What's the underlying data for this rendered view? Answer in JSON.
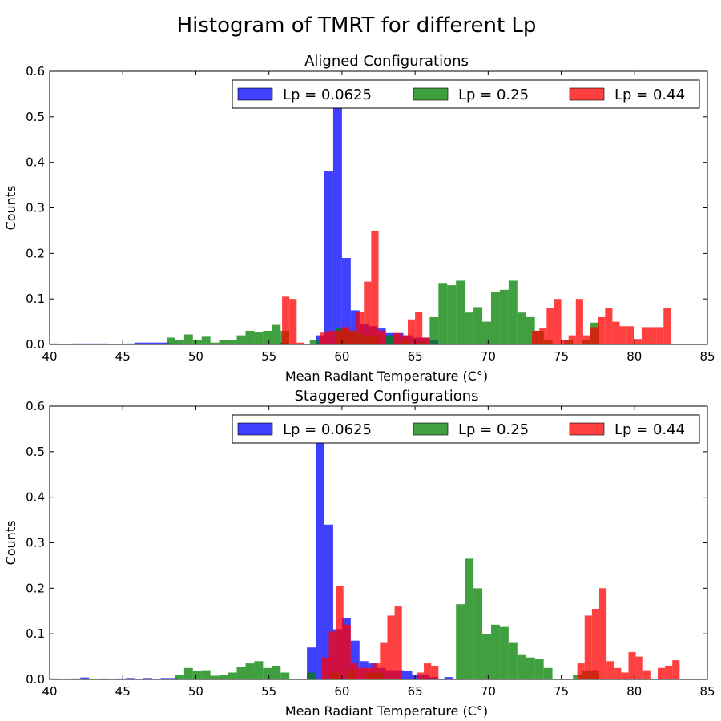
{
  "suptitle": "Histogram of TMRT for different Lp",
  "chart_data": [
    {
      "type": "histogram",
      "title": "Aligned Configurations",
      "xlabel": "Mean Radiant Temperature (C°)",
      "ylabel": "Counts",
      "xlim": [
        40,
        85
      ],
      "ylim": [
        0,
        0.6
      ],
      "xticks": [
        40,
        45,
        50,
        55,
        60,
        65,
        70,
        75,
        80,
        85
      ],
      "yticks": [
        0.0,
        0.1,
        0.2,
        0.3,
        0.4,
        0.5,
        0.6
      ],
      "legend": {
        "location": "top-right",
        "ncol": 3
      },
      "series": [
        {
          "name": "Lp = 0.0625",
          "color": "#0000ff",
          "bins": [
            [
              40,
              40.6,
              0.002
            ],
            [
              41.5,
              42.1,
              0.002
            ],
            [
              42.1,
              42.7,
              0.002
            ],
            [
              42.7,
              43.3,
              0.002
            ],
            [
              43.3,
              44,
              0.002
            ],
            [
              45.2,
              45.8,
              0.002
            ],
            [
              45.8,
              46.4,
              0.004
            ],
            [
              46.4,
              47,
              0.004
            ],
            [
              47,
              47.6,
              0.004
            ],
            [
              47.6,
              48.2,
              0.004
            ],
            [
              48.2,
              48.8,
              0.002
            ],
            [
              55.7,
              56.3,
              0.004
            ],
            [
              58.2,
              58.8,
              0.02
            ],
            [
              58.8,
              59.4,
              0.38
            ],
            [
              59.4,
              60,
              0.53
            ],
            [
              60,
              60.6,
              0.19
            ],
            [
              60.6,
              61.2,
              0.075
            ],
            [
              61.2,
              61.8,
              0.045
            ],
            [
              61.8,
              62.4,
              0.04
            ],
            [
              62.4,
              63,
              0.035
            ],
            [
              63,
              63.6,
              0.025
            ],
            [
              63.6,
              64.2,
              0.025
            ],
            [
              64.2,
              64.8,
              0.02
            ],
            [
              64.8,
              65.4,
              0.015
            ],
            [
              65.4,
              66,
              0.015
            ],
            [
              66,
              66.6,
              0.01
            ]
          ]
        },
        {
          "name": "Lp = 0.25",
          "color": "#008000",
          "bins": [
            [
              48,
              48.6,
              0.015
            ],
            [
              48.6,
              49.2,
              0.01
            ],
            [
              49.2,
              49.8,
              0.022
            ],
            [
              49.8,
              50.4,
              0.01
            ],
            [
              50.4,
              51,
              0.017
            ],
            [
              51,
              51.6,
              0.004
            ],
            [
              51.6,
              52.2,
              0.01
            ],
            [
              52.2,
              52.8,
              0.01
            ],
            [
              52.8,
              53.4,
              0.02
            ],
            [
              53.4,
              54,
              0.03
            ],
            [
              54,
              54.6,
              0.027
            ],
            [
              54.6,
              55.2,
              0.03
            ],
            [
              55.2,
              55.8,
              0.043
            ],
            [
              55.8,
              56.4,
              0.03
            ],
            [
              57.8,
              58.4,
              0.01
            ],
            [
              59.6,
              60.2,
              0.035
            ],
            [
              60.2,
              60.8,
              0.03
            ],
            [
              60.8,
              61.4,
              0.025
            ],
            [
              61.4,
              62,
              0.02
            ],
            [
              62,
              62.6,
              0.02
            ],
            [
              63,
              63.6,
              0.02
            ],
            [
              64,
              64.6,
              0.01
            ],
            [
              65.2,
              65.8,
              0.005
            ],
            [
              66,
              66.6,
              0.06
            ],
            [
              66.6,
              67.2,
              0.135
            ],
            [
              67.2,
              67.8,
              0.13
            ],
            [
              67.8,
              68.4,
              0.14
            ],
            [
              68.4,
              69,
              0.07
            ],
            [
              69,
              69.6,
              0.082
            ],
            [
              69.6,
              70.2,
              0.05
            ],
            [
              70.2,
              70.8,
              0.115
            ],
            [
              70.8,
              71.4,
              0.12
            ],
            [
              71.4,
              72,
              0.14
            ],
            [
              72,
              72.6,
              0.07
            ],
            [
              72.6,
              73.2,
              0.06
            ],
            [
              73.2,
              73.8,
              0.03
            ],
            [
              73.8,
              74.4,
              0.01
            ],
            [
              75.2,
              75.8,
              0.01
            ],
            [
              76.4,
              77,
              0.01
            ],
            [
              77,
              77.6,
              0.048
            ]
          ]
        },
        {
          "name": "Lp = 0.44",
          "color": "#ff0000",
          "bins": [
            [
              55.9,
              56.4,
              0.105
            ],
            [
              56.4,
              56.9,
              0.1
            ],
            [
              56.9,
              57.4,
              0.004
            ],
            [
              58.5,
              59,
              0.026
            ],
            [
              59,
              59.5,
              0.03
            ],
            [
              59.5,
              60,
              0.03
            ],
            [
              60,
              60.5,
              0.038
            ],
            [
              60.5,
              61,
              0.03
            ],
            [
              61,
              61.5,
              0.072
            ],
            [
              61.5,
              62,
              0.138
            ],
            [
              62,
              62.5,
              0.25
            ],
            [
              62.5,
              63,
              0.03
            ],
            [
              63.5,
              64,
              0.025
            ],
            [
              64,
              64.5,
              0.02
            ],
            [
              64.5,
              65,
              0.055
            ],
            [
              65,
              65.5,
              0.072
            ],
            [
              65.5,
              66,
              0.015
            ],
            [
              73,
              73.5,
              0.03
            ],
            [
              73.5,
              74,
              0.035
            ],
            [
              74,
              74.5,
              0.08
            ],
            [
              74.5,
              75,
              0.1
            ],
            [
              75,
              75.5,
              0.01
            ],
            [
              75.5,
              76,
              0.02
            ],
            [
              76,
              76.5,
              0.1
            ],
            [
              76.5,
              77,
              0.02
            ],
            [
              77,
              77.5,
              0.038
            ],
            [
              77.5,
              78,
              0.06
            ],
            [
              78,
              78.5,
              0.08
            ],
            [
              78.5,
              79,
              0.05
            ],
            [
              79,
              79.5,
              0.04
            ],
            [
              79.5,
              80,
              0.04
            ],
            [
              80,
              80.5,
              0.012
            ],
            [
              80.5,
              81,
              0.038
            ],
            [
              81,
              81.5,
              0.038
            ],
            [
              81.5,
              82,
              0.038
            ],
            [
              82,
              82.5,
              0.08
            ]
          ]
        }
      ]
    },
    {
      "type": "histogram",
      "title": "Staggered Configurations",
      "xlabel": "Mean Radiant Temperature (C°)",
      "ylabel": "Counts",
      "xlim": [
        40,
        85
      ],
      "ylim": [
        0,
        0.6
      ],
      "xticks": [
        40,
        45,
        50,
        55,
        60,
        65,
        70,
        75,
        80,
        85
      ],
      "yticks": [
        0.0,
        0.1,
        0.2,
        0.3,
        0.4,
        0.5,
        0.6
      ],
      "legend": {
        "location": "top-right",
        "ncol": 3
      },
      "series": [
        {
          "name": "Lp = 0.0625",
          "color": "#0000ff",
          "bins": [
            [
              40,
              40.6,
              0.002
            ],
            [
              41.5,
              42.1,
              0.002
            ],
            [
              42.1,
              42.7,
              0.004
            ],
            [
              43.3,
              44,
              0.002
            ],
            [
              44.5,
              45.1,
              0.002
            ],
            [
              45.2,
              45.8,
              0.003
            ],
            [
              46.4,
              47,
              0.003
            ],
            [
              47.6,
              48.2,
              0.003
            ],
            [
              48.2,
              48.8,
              0.003
            ],
            [
              57.6,
              58.2,
              0.07
            ],
            [
              58.2,
              58.8,
              0.52
            ],
            [
              58.8,
              59.4,
              0.34
            ],
            [
              59.4,
              60,
              0.11
            ],
            [
              60,
              60.6,
              0.135
            ],
            [
              60.6,
              61.2,
              0.085
            ],
            [
              61.2,
              61.8,
              0.04
            ],
            [
              61.8,
              62.4,
              0.035
            ],
            [
              62.4,
              63,
              0.025
            ],
            [
              63,
              63.6,
              0.02
            ],
            [
              63.6,
              64.2,
              0.02
            ],
            [
              64.2,
              64.8,
              0.018
            ],
            [
              64.8,
              65.4,
              0.01
            ],
            [
              65.4,
              66,
              0.01
            ],
            [
              66,
              66.6,
              0.005
            ],
            [
              67,
              67.6,
              0.005
            ]
          ]
        },
        {
          "name": "Lp = 0.25",
          "color": "#008000",
          "bins": [
            [
              48.6,
              49.2,
              0.01
            ],
            [
              49.2,
              49.8,
              0.025
            ],
            [
              49.8,
              50.4,
              0.018
            ],
            [
              50.4,
              51,
              0.02
            ],
            [
              51,
              51.6,
              0.008
            ],
            [
              51.6,
              52.2,
              0.01
            ],
            [
              52.2,
              52.8,
              0.015
            ],
            [
              52.8,
              53.4,
              0.028
            ],
            [
              53.4,
              54,
              0.035
            ],
            [
              54,
              54.6,
              0.04
            ],
            [
              54.6,
              55.2,
              0.025
            ],
            [
              55.2,
              55.8,
              0.03
            ],
            [
              55.8,
              56.4,
              0.015
            ],
            [
              57.6,
              58.2,
              0.015
            ],
            [
              59.2,
              59.8,
              0.015
            ],
            [
              60.4,
              61,
              0.02
            ],
            [
              61.6,
              62.2,
              0.015
            ],
            [
              62.2,
              62.8,
              0.015
            ],
            [
              67.8,
              68.4,
              0.165
            ],
            [
              68.4,
              69,
              0.265
            ],
            [
              69,
              69.6,
              0.2
            ],
            [
              69.6,
              70.2,
              0.1
            ],
            [
              70.2,
              70.8,
              0.12
            ],
            [
              70.8,
              71.4,
              0.115
            ],
            [
              71.4,
              72,
              0.08
            ],
            [
              72,
              72.6,
              0.055
            ],
            [
              72.6,
              73.2,
              0.048
            ],
            [
              73.2,
              73.8,
              0.045
            ],
            [
              73.8,
              74.4,
              0.025
            ],
            [
              75.8,
              76.4,
              0.01
            ],
            [
              76.4,
              77,
              0.018
            ],
            [
              77,
              77.6,
              0.02
            ]
          ]
        },
        {
          "name": "Lp = 0.44",
          "color": "#ff0000",
          "bins": [
            [
              58.6,
              59.1,
              0.048
            ],
            [
              59.1,
              59.6,
              0.105
            ],
            [
              59.6,
              60.1,
              0.205
            ],
            [
              60.1,
              60.6,
              0.12
            ],
            [
              60.6,
              61.1,
              0.035
            ],
            [
              61.1,
              61.6,
              0.025
            ],
            [
              61.6,
              62.1,
              0.025
            ],
            [
              62.1,
              62.6,
              0.035
            ],
            [
              62.6,
              63.1,
              0.08
            ],
            [
              63.1,
              63.6,
              0.14
            ],
            [
              63.6,
              64.1,
              0.16
            ],
            [
              65.1,
              65.6,
              0.015
            ],
            [
              65.6,
              66.1,
              0.035
            ],
            [
              66.1,
              66.6,
              0.03
            ],
            [
              76.1,
              76.6,
              0.035
            ],
            [
              76.6,
              77.1,
              0.14
            ],
            [
              77.1,
              77.6,
              0.155
            ],
            [
              77.6,
              78.1,
              0.2
            ],
            [
              78.1,
              78.6,
              0.04
            ],
            [
              78.6,
              79.1,
              0.025
            ],
            [
              79.1,
              79.6,
              0.015
            ],
            [
              79.6,
              80.1,
              0.06
            ],
            [
              80.1,
              80.6,
              0.05
            ],
            [
              80.6,
              81.1,
              0.02
            ],
            [
              81.6,
              82.1,
              0.025
            ],
            [
              82.1,
              82.6,
              0.03
            ],
            [
              82.6,
              83.1,
              0.042
            ]
          ]
        }
      ]
    }
  ]
}
